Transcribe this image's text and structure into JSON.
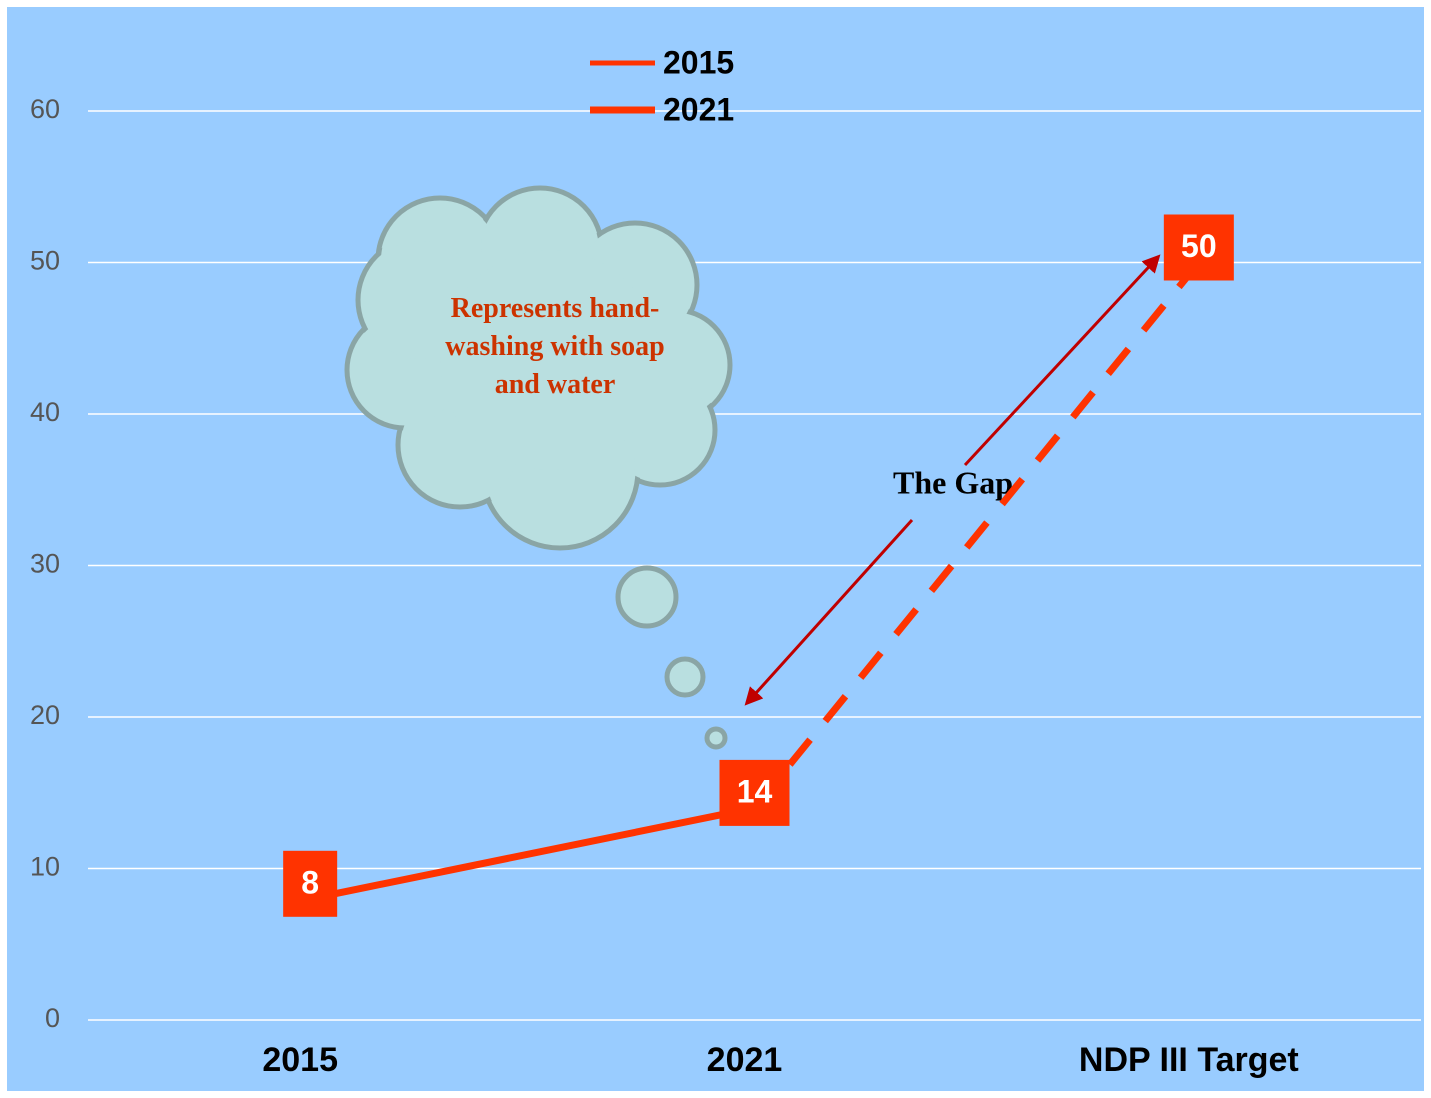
{
  "chart_data": {
    "type": "line",
    "categories": [
      "2015",
      "2021",
      "NDP III Target"
    ],
    "series": [
      {
        "name": "2015",
        "color": "#ff3300",
        "dashed": false,
        "values": [
          8,
          14,
          null
        ]
      },
      {
        "name": "2021",
        "color": "#ff3300",
        "dashed": true,
        "values": [
          null,
          14,
          50
        ]
      }
    ],
    "ylim": [
      0,
      60
    ],
    "yticks": [
      0,
      10,
      20,
      30,
      40,
      50,
      60
    ],
    "grid": true,
    "data_labels": true,
    "legend": "top",
    "annotations": {
      "cloud": "Represents hand-washing with soap and water",
      "gap": "The Gap"
    }
  }
}
